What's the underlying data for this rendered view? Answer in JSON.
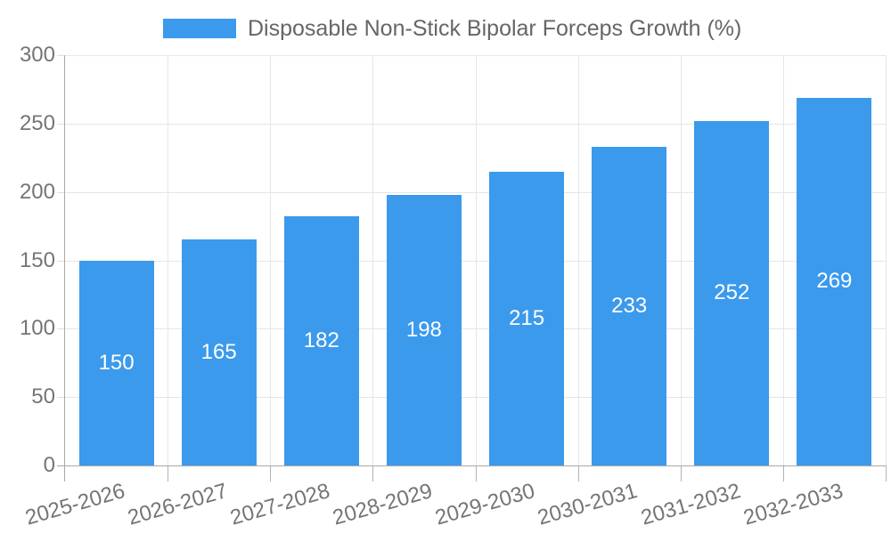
{
  "legend": {
    "position": "top",
    "items": [
      {
        "label": "Disposable Non-Stick Bipolar Forceps Growth (%)",
        "color": "#3B9AEC"
      }
    ]
  },
  "colors": {
    "bar": "#3B9AEC",
    "value_label": "#ffffff",
    "axis_text": "#757575",
    "title_text": "#666666",
    "gridline": "#e6e6e6",
    "axis_line": "#a8a8a8",
    "background": "#ffffff"
  },
  "chart_data": {
    "type": "bar",
    "title": "Disposable Non-Stick Bipolar Forceps Growth (%)",
    "categories": [
      "2025-2026",
      "2026-2027",
      "2027-2028",
      "2028-2029",
      "2029-2030",
      "2030-2031",
      "2031-2032",
      "2032-2033"
    ],
    "values": [
      150,
      165,
      182,
      198,
      215,
      233,
      252,
      269
    ],
    "series": [
      {
        "name": "Disposable Non-Stick Bipolar Forceps Growth (%)",
        "values": [
          150,
          165,
          182,
          198,
          215,
          233,
          252,
          269
        ]
      }
    ],
    "xlabel": "",
    "ylabel": "",
    "ylim": [
      0,
      300
    ],
    "yticks": [
      0,
      50,
      100,
      150,
      200,
      250,
      300
    ],
    "grid": true,
    "legend_position": "top",
    "value_label_position": "inside-center",
    "x_label_rotation_deg": -16
  }
}
